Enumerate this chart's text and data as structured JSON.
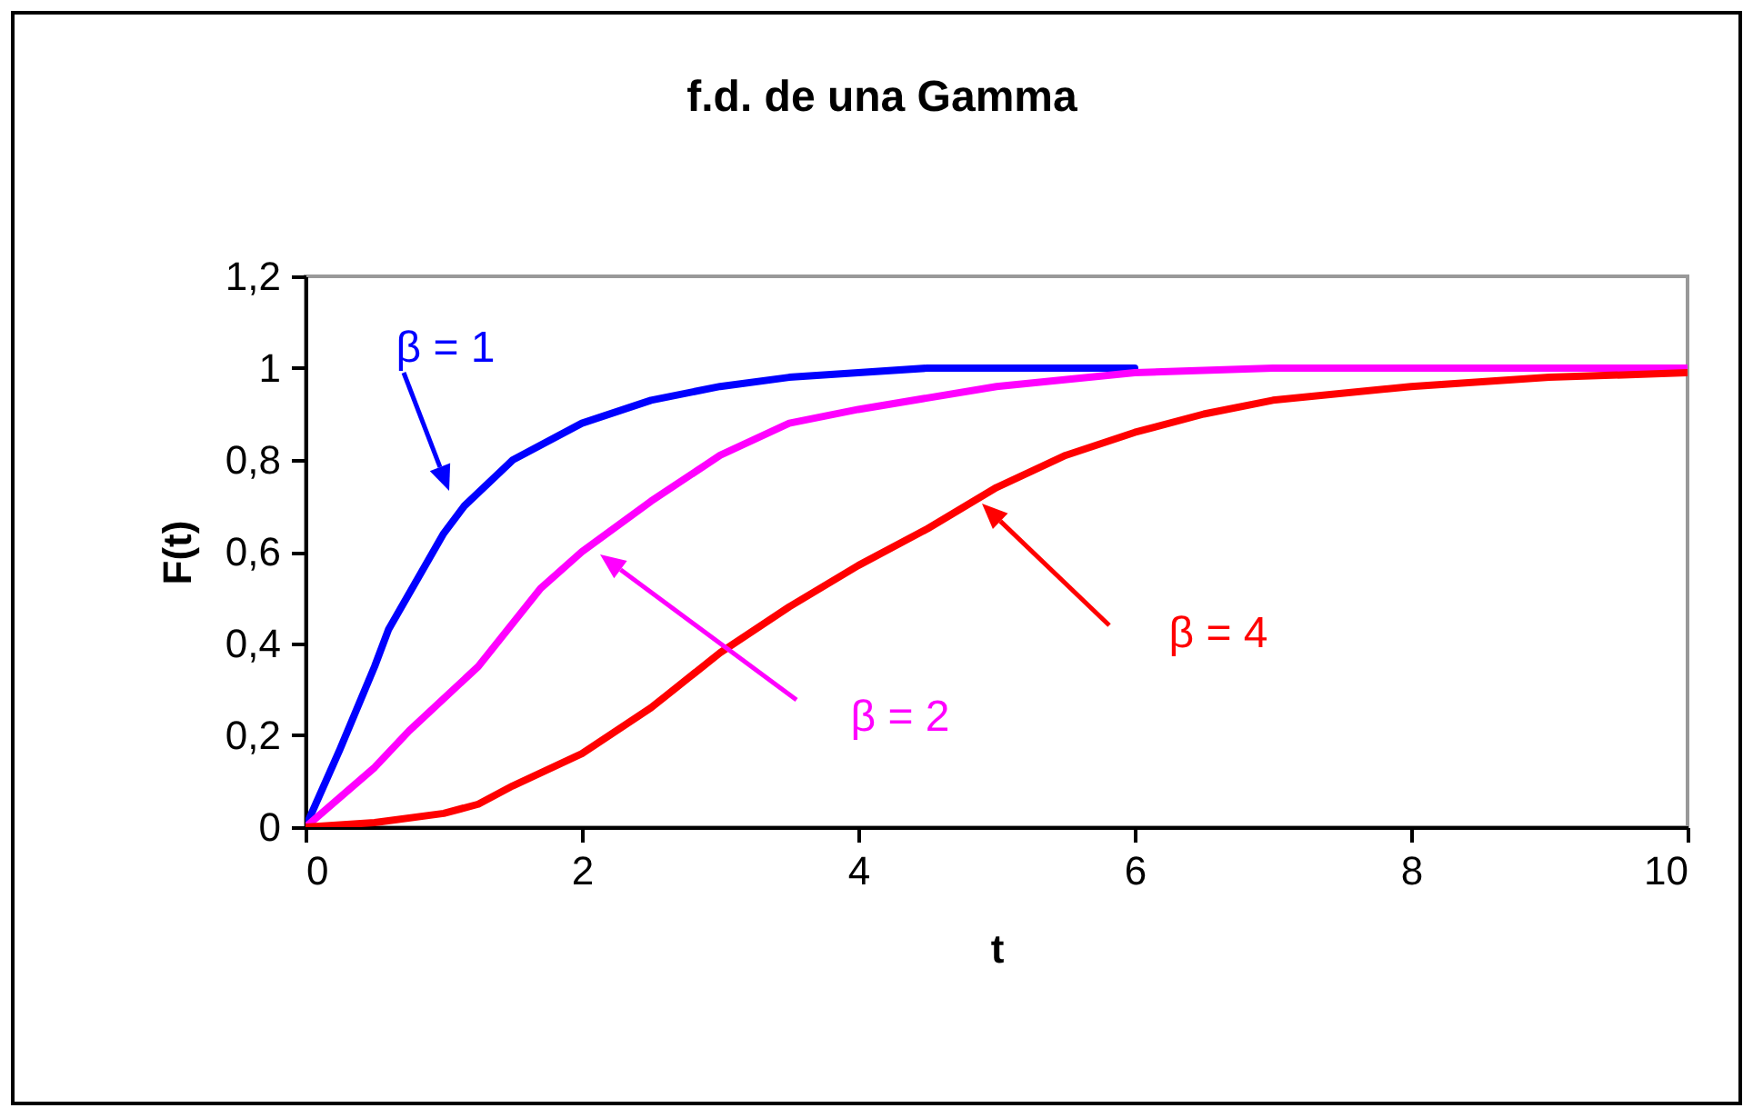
{
  "chart_data": {
    "type": "line",
    "title": "f.d. de una Gamma",
    "xlabel": "t",
    "ylabel": "F(t)",
    "xlim": [
      0,
      10
    ],
    "xticks": [
      0,
      2,
      4,
      6,
      8,
      10
    ],
    "ylim": [
      0,
      1.2
    ],
    "yticks": [
      0,
      {
        "value": 0.2,
        "label": "0,2"
      },
      {
        "value": 0.4,
        "label": "0,4"
      },
      {
        "value": 0.6,
        "label": "0,6"
      },
      {
        "value": 0.8,
        "label": "0,8"
      },
      1,
      {
        "value": 1.2,
        "label": "1,2"
      }
    ],
    "grid": false,
    "legend": false,
    "marker": "none",
    "line_style": "solid",
    "series": [
      {
        "name": "β = 1",
        "color": "#0000ff",
        "x": [
          0,
          0.25,
          0.5,
          0.6,
          1,
          1.15,
          1.5,
          2,
          2.5,
          3,
          3.5,
          4,
          4.5,
          5,
          6
        ],
        "values": [
          0,
          0.17,
          0.35,
          0.43,
          0.64,
          0.7,
          0.8,
          0.88,
          0.93,
          0.96,
          0.98,
          0.99,
          1,
          1,
          1
        ]
      },
      {
        "name": "β = 2",
        "color": "#ff00ff",
        "x": [
          0,
          0.5,
          0.75,
          1.25,
          1.7,
          2,
          2.5,
          3,
          3.5,
          4,
          5,
          6,
          7,
          8,
          9,
          10
        ],
        "values": [
          0,
          0.13,
          0.21,
          0.35,
          0.52,
          0.6,
          0.71,
          0.81,
          0.88,
          0.91,
          0.96,
          0.99,
          1,
          1,
          1,
          1
        ]
      },
      {
        "name": "β = 4",
        "color": "#ff0000",
        "x": [
          0,
          0.5,
          1,
          1.25,
          1.5,
          2,
          2.5,
          3,
          3.5,
          4,
          4.5,
          5,
          5.5,
          6,
          6.5,
          7,
          8,
          9,
          10
        ],
        "values": [
          0,
          0.01,
          0.03,
          0.05,
          0.09,
          0.16,
          0.26,
          0.38,
          0.48,
          0.57,
          0.65,
          0.74,
          0.81,
          0.86,
          0.9,
          0.93,
          0.96,
          0.98,
          0.99
        ]
      }
    ]
  }
}
